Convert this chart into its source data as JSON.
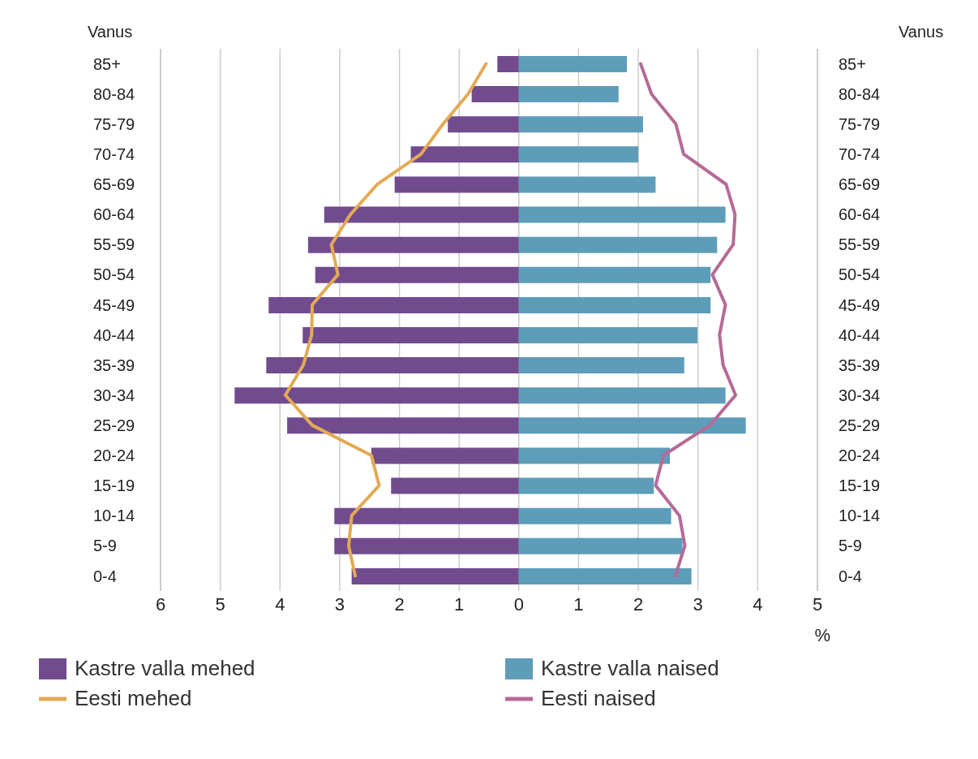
{
  "chart_data": {
    "type": "bar",
    "orientation": "horizontal",
    "stacked": true,
    "ylabel": "Vanus",
    "y2label": "Vanus",
    "xlabel": "%",
    "categories": [
      "85+",
      "80-84",
      "75-79",
      "70-74",
      "65-69",
      "60-64",
      "55-59",
      "50-54",
      "45-49",
      "40-44",
      "35-39",
      "30-34",
      "25-29",
      "20-24",
      "15-19",
      "10-14",
      "5-9",
      "0-4"
    ],
    "series": [
      {
        "name": "Kastre valla mehed",
        "color": "#724b8f",
        "values": [
          -0.36,
          -0.79,
          -1.19,
          -1.81,
          -2.08,
          -3.26,
          -3.53,
          -3.41,
          -4.19,
          -3.62,
          -4.23,
          -4.76,
          -3.88,
          -2.47,
          -2.14,
          -3.09,
          -3.09,
          -2.8
        ]
      },
      {
        "name": "Kastre valla naised",
        "color": "#5e9db9",
        "values": [
          1.81,
          1.67,
          2.08,
          2.0,
          2.29,
          3.46,
          3.32,
          3.21,
          3.21,
          2.99,
          2.77,
          3.46,
          3.8,
          2.53,
          2.26,
          2.55,
          2.74,
          2.89
        ]
      },
      {
        "name": "Eesti mehed",
        "type": "line",
        "color": "#e3aa55",
        "values": [
          -0.55,
          -0.85,
          -1.27,
          -1.64,
          -2.37,
          -2.82,
          -3.14,
          -3.03,
          -3.46,
          -3.47,
          -3.61,
          -3.91,
          -3.46,
          -2.47,
          -2.34,
          -2.8,
          -2.85,
          -2.74
        ]
      },
      {
        "name": "Eesti naised",
        "type": "line",
        "color": "#b56a97",
        "values": [
          2.04,
          2.22,
          2.63,
          2.76,
          3.47,
          3.62,
          3.59,
          3.24,
          3.46,
          3.36,
          3.42,
          3.63,
          3.2,
          2.42,
          2.29,
          2.69,
          2.78,
          2.62
        ]
      }
    ],
    "xlim": [
      -6,
      5
    ],
    "xticks": [
      {
        "value": -6,
        "label": "6"
      },
      {
        "value": -5,
        "label": "5"
      },
      {
        "value": -4,
        "label": "4"
      },
      {
        "value": -3,
        "label": "3"
      },
      {
        "value": -2,
        "label": "2"
      },
      {
        "value": -1,
        "label": "1"
      },
      0,
      1,
      2,
      3,
      4,
      5
    ],
    "grid": "x",
    "legend": "bottom"
  }
}
